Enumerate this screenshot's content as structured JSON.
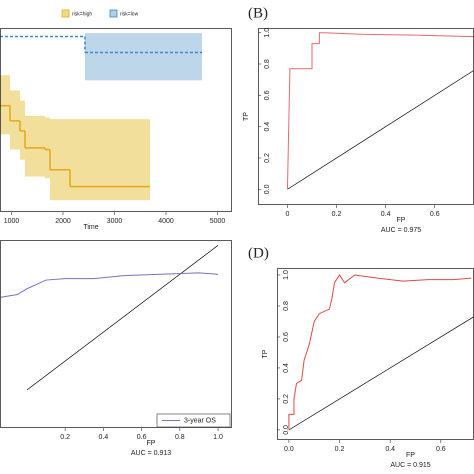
{
  "chart_data": [
    {
      "type": "step",
      "xlabel": "Time",
      "xlim": [
        777,
        5282
      ],
      "ylim": [
        -0.04,
        1.05
      ],
      "xticks": [
        1000,
        2000,
        3000,
        4000,
        5000
      ],
      "series": [
        {
          "name": "risk=high",
          "color": "#e6a817",
          "band_color": "#f0d98a",
          "x": [
            777,
            971,
            1165,
            1262,
            1650,
            1748,
            2136,
            3689
          ],
          "values": [
            0.59,
            0.5,
            0.44,
            0.34,
            0.33,
            0.21,
            0.11,
            0.11
          ],
          "lower": [
            0.42,
            0.33,
            0.27,
            0.17,
            0.16,
            0.03,
            0.03,
            0.03
          ],
          "upper": [
            0.77,
            0.68,
            0.62,
            0.53,
            0.52,
            0.51,
            0.51,
            0.51
          ]
        },
        {
          "name": "risk=low",
          "color": "#3a87c8",
          "band_color": "#b3cfe6",
          "x": [
            777,
            2427,
            4699
          ],
          "values": [
            1,
            0.905,
            0.905
          ],
          "lower": [
            1,
            0.74,
            0.74
          ],
          "upper": [
            1,
            1.02,
            1.02
          ]
        }
      ]
    },
    {
      "type": "roc",
      "panel_label": "(B)",
      "xlabel": "FP",
      "ylabel": "TP",
      "annotation": "AUC = 0.975",
      "xlim": [
        -0.12,
        0.76
      ],
      "ylim": [
        -0.1,
        1.03
      ],
      "xticks": [
        0,
        0.2,
        0.4,
        0.6
      ],
      "yticks": [
        {
          "value": 0,
          "label": "0.0"
        },
        0.2,
        0.4,
        0.6,
        0.8,
        {
          "value": 1,
          "label": "1.0"
        }
      ],
      "series": [
        {
          "color": "#e36b6b",
          "x": [
            0,
            0.01,
            0.1,
            0.1,
            0.13,
            0.13,
            0.15,
            0.3,
            0.5,
            0.76
          ],
          "values": [
            0,
            0.77,
            0.77,
            0.93,
            0.93,
            1.0,
            1.0,
            0.99,
            0.985,
            0.975
          ]
        }
      ]
    },
    {
      "type": "roc",
      "xlabel": "FP",
      "annotation": "AUC = 0.913",
      "xlim": [
        -0.141,
        1.073
      ],
      "ylim": [
        -0.263,
        1.037
      ],
      "xticks": [
        0.2,
        0.4,
        0.6,
        0.8,
        {
          "value": 1,
          "label": "1.0"
        }
      ],
      "series": [
        {
          "name": "3-year OS",
          "color": "#7b6fc4",
          "x": [
            -0.14,
            -0.05,
            0,
            0.05,
            0.1,
            0.2,
            0.35,
            0.5,
            0.7,
            0.9,
            1.0
          ],
          "values": [
            0.64,
            0.66,
            0.7,
            0.73,
            0.76,
            0.77,
            0.77,
            0.79,
            0.8,
            0.81,
            0.8
          ]
        }
      ]
    },
    {
      "type": "roc",
      "panel_label": "(D)",
      "xlabel": "FP",
      "ylabel": "TP",
      "annotation": "AUC = 0.915",
      "xlim": [
        -0.047,
        0.731
      ],
      "ylim": [
        -0.065,
        1.045
      ],
      "xticks": [
        {
          "value": 0,
          "label": "0.0"
        },
        0.2,
        0.4,
        0.6
      ],
      "yticks": [
        {
          "value": 0,
          "label": "0.0"
        },
        0.2,
        0.4,
        0.6,
        0.8,
        {
          "value": 1,
          "label": "1.0"
        }
      ],
      "series": [
        {
          "color": "#e04848",
          "x": [
            0,
            0,
            0.02,
            0.02,
            0.03,
            0.05,
            0.06,
            0.08,
            0.1,
            0.12,
            0.16,
            0.17,
            0.18,
            0.2,
            0.22,
            0.26,
            0.35,
            0.45,
            0.55,
            0.65,
            0.72
          ],
          "values": [
            0,
            0.1,
            0.1,
            0.2,
            0.3,
            0.32,
            0.45,
            0.55,
            0.7,
            0.75,
            0.78,
            0.85,
            0.95,
            1.0,
            0.95,
            1.0,
            0.98,
            0.96,
            0.97,
            0.97,
            0.98
          ]
        }
      ]
    }
  ]
}
